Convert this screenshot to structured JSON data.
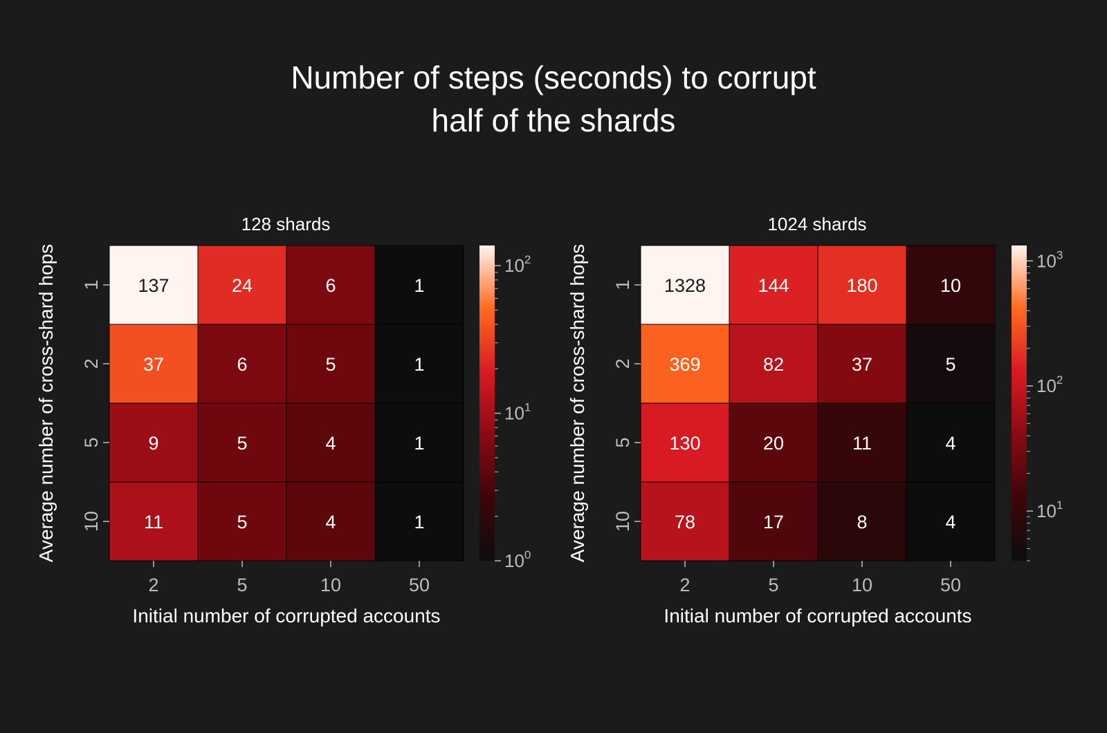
{
  "title": {
    "line1": "Number of steps (seconds) to corrupt",
    "line2": "half of the shards"
  },
  "colors": {
    "background": "#1b1b1b",
    "text": "#ffffff",
    "tick_text": "#bdbdbd",
    "colormap": [
      "#0d0d0d",
      "#3d0508",
      "#8a0a12",
      "#d81a24",
      "#ff6a1e",
      "#fff4ef"
    ]
  },
  "chart_data": [
    {
      "type": "heatmap",
      "title": "128 shards",
      "xlabel": "Initial number of corrupted accounts",
      "ylabel": "Average number of cross-shard hops",
      "x_categories": [
        "2",
        "5",
        "10",
        "50"
      ],
      "y_categories": [
        "1",
        "2",
        "5",
        "10"
      ],
      "values": [
        [
          137,
          24,
          6,
          1
        ],
        [
          37,
          6,
          5,
          1
        ],
        [
          9,
          5,
          4,
          1
        ],
        [
          11,
          5,
          4,
          1
        ]
      ],
      "color_scale": "log",
      "vmin": 1,
      "vmax": 137,
      "colorbar_ticks": [
        {
          "base": "10",
          "exp": "0",
          "value": 1
        },
        {
          "base": "10",
          "exp": "1",
          "value": 10
        },
        {
          "base": "10",
          "exp": "2",
          "value": 100
        }
      ]
    },
    {
      "type": "heatmap",
      "title": "1024 shards",
      "xlabel": "Initial number of corrupted accounts",
      "ylabel": "Average number of cross-shard hops",
      "x_categories": [
        "2",
        "5",
        "10",
        "50"
      ],
      "y_categories": [
        "1",
        "2",
        "5",
        "10"
      ],
      "values": [
        [
          1328,
          144,
          180,
          10
        ],
        [
          369,
          82,
          37,
          5
        ],
        [
          130,
          20,
          11,
          4
        ],
        [
          78,
          17,
          8,
          4
        ]
      ],
      "color_scale": "log",
      "vmin": 4,
      "vmax": 1328,
      "colorbar_ticks": [
        {
          "base": "10",
          "exp": "1",
          "value": 10
        },
        {
          "base": "10",
          "exp": "2",
          "value": 100
        },
        {
          "base": "10",
          "exp": "3",
          "value": 1000
        }
      ]
    }
  ]
}
